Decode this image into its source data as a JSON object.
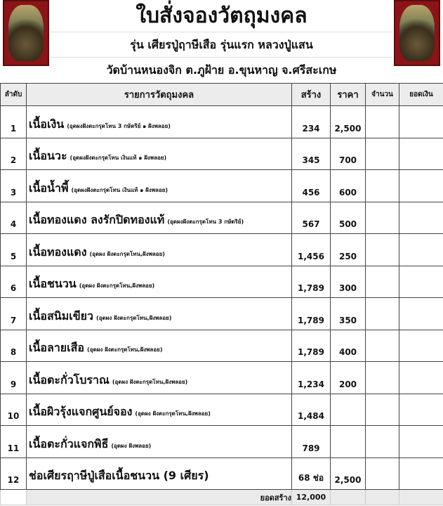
{
  "header": {
    "title": "ใบสั่งจองวัตถุมงคล",
    "subtitle": "รุ่น เศียรปู่ฤาษีเสือ รุ่นแรก หลวงปู่แสน",
    "location": "วัดบ้านหนองจิก ต.ภูฝ้าย อ.ขุนหาญ จ.ศรีสะเกษ"
  },
  "columns": {
    "no": "ลำดับ",
    "item": "รายการวัตถุมงคล",
    "made": "สร้าง",
    "price": "ราคา",
    "qty": "จำนวน",
    "total": "ยอดเงิน"
  },
  "rows": [
    {
      "no": "1",
      "name": "เนื้อเงิน",
      "note": "(อุดผงฝังตะกรุดโทน 3 กษัตริย์ ๑ ฝังพลอย)",
      "made": "234",
      "price": "2,500"
    },
    {
      "no": "2",
      "name": "เนื้อนวะ",
      "note": "(อุดผงฝังตะกรุดโทน เงินแท้ ๑ ฝังพลอย)",
      "made": "345",
      "price": "700"
    },
    {
      "no": "3",
      "name": "เนื้อน้ำพี้",
      "note": "(อุดผงฝังตะกรุดโทน เงินแท้ ๑ ฝังพลอย)",
      "made": "456",
      "price": "600"
    },
    {
      "no": "4",
      "name": "เนื้อทองแดง ลงรักปิดทองแท้",
      "note": "(อุดผงฝังตะกรุดโทน 3 กษัตริย์)",
      "made": "567",
      "price": "500"
    },
    {
      "no": "5",
      "name": "เนื้อทองแดง",
      "note": "(อุดผง ฝังตะกรุดโทน,ฝังพลอย)",
      "made": "1,456",
      "price": "250"
    },
    {
      "no": "6",
      "name": "เนื้อชนวน",
      "note": "(อุดผง ฝังตะกรุดโทน,ฝังพลอย)",
      "made": "1,789",
      "price": "300"
    },
    {
      "no": "7",
      "name": "เนื้อสนิมเขียว",
      "note": "(อุดผง ฝังตะกรุดโทน,ฝังพลอย)",
      "made": "1,789",
      "price": "350"
    },
    {
      "no": "8",
      "name": "เนื้อลายเสือ",
      "note": "(อุดผง ฝังตะกรุดโทน,ฝังพลอย)",
      "made": "1,789",
      "price": "400"
    },
    {
      "no": "9",
      "name": "เนื้อตะกั่วโบราณ",
      "note": "(อุดผง ฝังตะกรุดโทน,ฝังพลอย)",
      "made": "1,234",
      "price": "200"
    },
    {
      "no": "10",
      "name": "เนื้อผิวรุ้งแจกศูนย์จอง",
      "note": "(อุดผง ฝังตะกรุดโทน,ฝังพลอย)",
      "made": "1,484",
      "price": ""
    },
    {
      "no": "11",
      "name": "เนื้อตะกั่วแจกพิธี",
      "note": "(อุดผง ฝังพลอย)",
      "made": "789",
      "price": ""
    },
    {
      "no": "12",
      "name": "ช่อเศียรฤาษีปู่เสือเนื้อชนวน (9 เศียร)",
      "note": "",
      "made": "68 ช่อ",
      "price": "2,500"
    }
  ],
  "footer": {
    "label": "ยอดสร้าง",
    "value": "12,000"
  }
}
